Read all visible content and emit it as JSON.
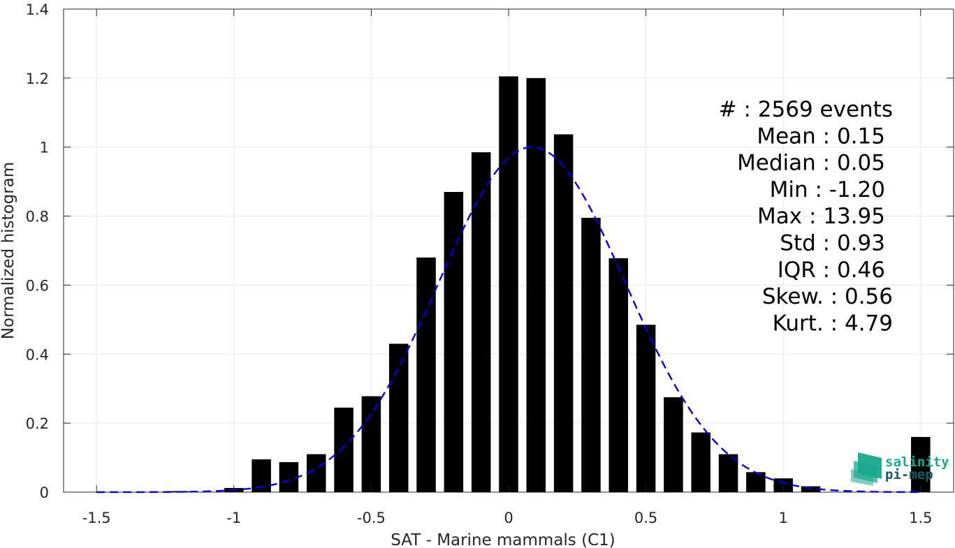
{
  "chart_data": {
    "type": "bar",
    "xlabel": "SAT - Marine mammals (C1)",
    "ylabel": "Normalized histogram",
    "xlim": [
      -1.62,
      1.62
    ],
    "ylim": [
      0,
      1.4
    ],
    "x_ticks": [
      "-1.5",
      "-1",
      "-0.5",
      "0",
      "0.5",
      "1",
      "1.5"
    ],
    "x_tick_values": [
      -1.5,
      -1,
      -0.5,
      0,
      0.5,
      1,
      1.5
    ],
    "y_ticks": [
      "0",
      "0.2",
      "0.4",
      "0.6",
      "0.8",
      "1",
      "1.2",
      "1.4"
    ],
    "y_tick_values": [
      0,
      0.2,
      0.4,
      0.6,
      0.8,
      1,
      1.2,
      1.4
    ],
    "grid": true,
    "bar_width": 0.07,
    "bars": {
      "x": [
        -1.2,
        -1.0,
        -0.9,
        -0.8,
        -0.7,
        -0.6,
        -0.5,
        -0.4,
        -0.3,
        -0.2,
        -0.1,
        0.0,
        0.1,
        0.2,
        0.3,
        0.4,
        0.5,
        0.6,
        0.7,
        0.8,
        0.9,
        1.0,
        1.1,
        1.5
      ],
      "values": [
        0.003,
        0.012,
        0.095,
        0.087,
        0.11,
        0.245,
        0.278,
        0.43,
        0.68,
        0.87,
        0.985,
        1.205,
        1.2,
        1.037,
        0.795,
        0.678,
        0.485,
        0.275,
        0.173,
        0.11,
        0.058,
        0.04,
        0.017,
        0.16
      ],
      "color": "#000000"
    },
    "fit_curve": {
      "type": "gaussian",
      "mean": 0.085,
      "sigma": 0.34,
      "peak": 1.0,
      "x_range": [
        -1.5,
        1.5
      ],
      "style": "dashed",
      "color": "#0000e6"
    },
    "stats": [
      {
        "label": "#",
        "value": ": 2569 events"
      },
      {
        "label": "Mean",
        "value": ": 0.15"
      },
      {
        "label": "Median",
        "value": ": 0.05"
      },
      {
        "label": "Min",
        "value": ": -1.20"
      },
      {
        "label": "Max",
        "value": ": 13.95"
      },
      {
        "label": "Std",
        "value": ": 0.93"
      },
      {
        "label": "IQR",
        "value": ": 0.46"
      },
      {
        "label": "Skew.",
        "value": ": 0.56"
      },
      {
        "label": "Kurt.",
        "value": ": 4.79"
      }
    ]
  },
  "logo": {
    "line1": "salinity",
    "line2": "pi-mep",
    "color_primary": "#1aa88e",
    "color_secondary": "#145f66"
  }
}
